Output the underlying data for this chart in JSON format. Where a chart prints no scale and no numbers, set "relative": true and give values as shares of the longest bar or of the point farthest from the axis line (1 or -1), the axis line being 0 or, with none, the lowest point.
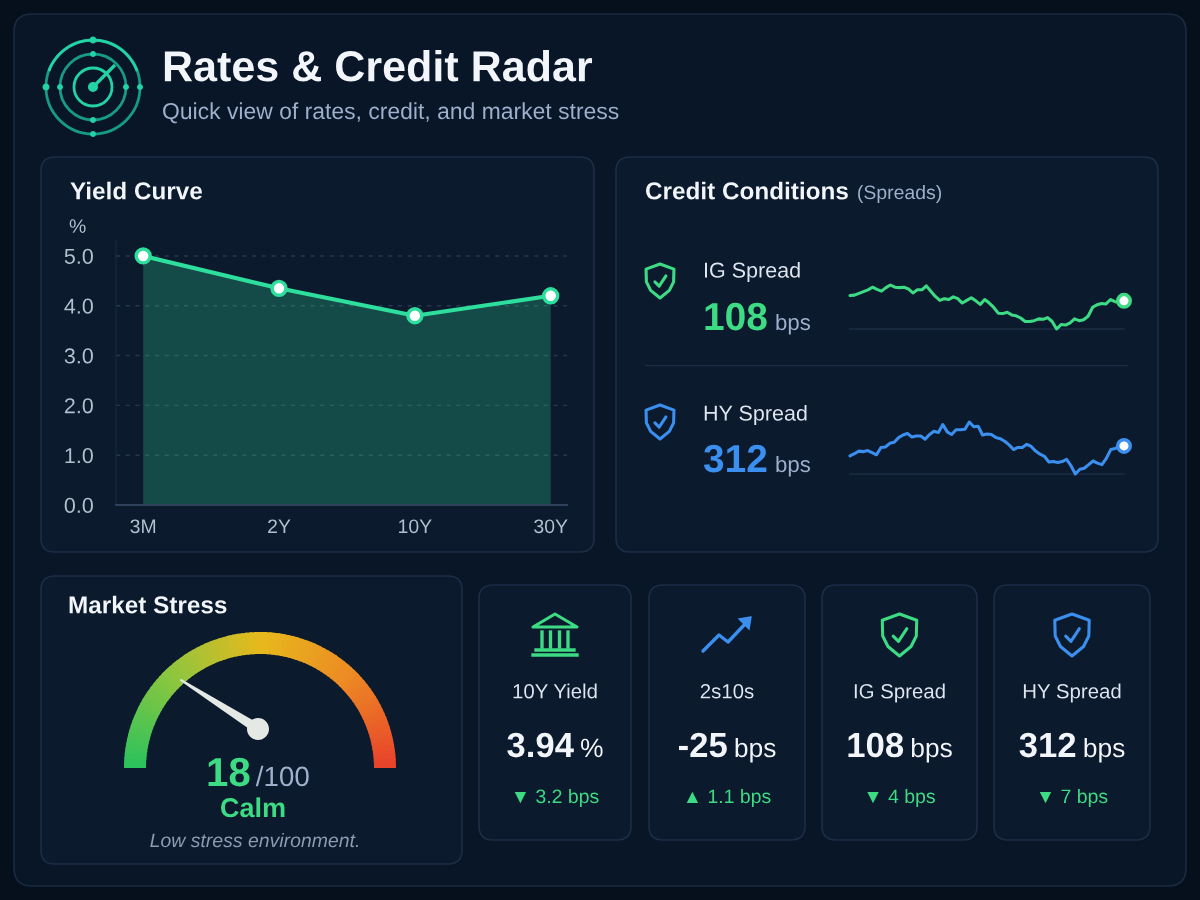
{
  "chart_data": [
    {
      "type": "other",
      "title": "Rates & Credit Radar",
      "subtitle": "Quick view of rates, credit, and market stress"
    },
    {
      "type": "area",
      "title": "Yield Curve",
      "ylabel": "%",
      "categories": [
        "3M",
        "2Y",
        "10Y",
        "30Y"
      ],
      "series": [
        {
          "color": "#2ede9c",
          "values": [
            5.0,
            4.35,
            3.8,
            4.2
          ]
        }
      ],
      "ylim": [
        0,
        5.3
      ],
      "yticks": [
        {
          "value": 0,
          "label": "0.0"
        },
        {
          "value": 1,
          "label": "1.0"
        },
        {
          "value": 2,
          "label": "2.0"
        },
        {
          "value": 3,
          "label": "3.0"
        },
        {
          "value": 4,
          "label": "4.0"
        },
        {
          "value": 5,
          "label": "5.0"
        }
      ],
      "grid": "y",
      "marker": "circle"
    },
    {
      "type": "line",
      "title": "Credit Conditions",
      "subtitle": "(Spreads)",
      "relative": true,
      "categories": [
        null,
        null,
        null,
        null,
        null,
        null,
        null,
        null,
        null,
        null,
        null,
        null,
        null,
        null,
        null,
        null,
        null,
        null,
        null,
        null,
        null,
        null,
        null,
        null,
        null,
        null,
        null,
        null,
        null,
        null,
        null,
        null,
        null,
        null,
        null,
        null,
        null,
        null,
        null,
        null,
        null,
        null,
        null,
        null,
        null,
        null,
        null,
        null,
        null,
        null,
        null,
        null,
        null,
        null,
        null,
        null,
        null,
        null,
        null,
        null,
        null,
        null
      ],
      "series": [
        {
          "name": "IG Spread",
          "color": "#3ddc84",
          "values": [
            0.76,
            0.77,
            0.81,
            0.85,
            0.89,
            0.95,
            0.9,
            0.86,
            0.94,
            1.0,
            0.95,
            0.94,
            0.95,
            0.91,
            0.82,
            0.89,
            0.89,
            0.98,
            0.86,
            0.74,
            0.65,
            0.69,
            0.67,
            0.73,
            0.69,
            0.59,
            0.65,
            0.71,
            0.64,
            0.56,
            0.67,
            0.59,
            0.49,
            0.36,
            0.35,
            0.38,
            0.32,
            0.3,
            0.25,
            0.17,
            0.17,
            0.19,
            0.23,
            0.22,
            0.26,
            0.17,
            0.0,
            0.1,
            0.09,
            0.14,
            0.23,
            0.19,
            0.21,
            0.29,
            0.49,
            0.55,
            0.58,
            0.57,
            0.67,
            0.62,
            0.61,
            0.64
          ]
        }
      ],
      "annotations": [
        "108",
        "bps"
      ]
    },
    {
      "type": "line",
      "relative": true,
      "categories": [
        null,
        null,
        null,
        null,
        null,
        null,
        null,
        null,
        null,
        null,
        null,
        null,
        null,
        null,
        null,
        null,
        null,
        null,
        null,
        null,
        null,
        null,
        null,
        null,
        null,
        null,
        null,
        null,
        null,
        null,
        null,
        null,
        null,
        null,
        null,
        null,
        null,
        null,
        null,
        null,
        null,
        null,
        null,
        null,
        null,
        null,
        null,
        null,
        null,
        null,
        null,
        null,
        null,
        null,
        null,
        null,
        null,
        null,
        null,
        null,
        null,
        null,
        null
      ],
      "series": [
        {
          "name": "HY Spread",
          "color": "#3b8fef",
          "values": [
            0.35,
            0.39,
            0.44,
            0.43,
            0.45,
            0.41,
            0.37,
            0.51,
            0.52,
            0.59,
            0.61,
            0.7,
            0.75,
            0.78,
            0.71,
            0.73,
            0.73,
            0.67,
            0.76,
            0.82,
            0.8,
            0.95,
            0.81,
            0.76,
            0.85,
            0.85,
            0.86,
            1.0,
            0.91,
            0.92,
            0.75,
            0.77,
            0.76,
            0.7,
            0.68,
            0.63,
            0.56,
            0.47,
            0.51,
            0.51,
            0.57,
            0.53,
            0.44,
            0.38,
            0.34,
            0.23,
            0.24,
            0.22,
            0.24,
            0.28,
            0.16,
            0.0,
            0.09,
            0.11,
            0.18,
            0.25,
            0.21,
            0.18,
            0.3,
            0.47,
            0.49,
            0.54,
            0.54
          ]
        }
      ],
      "annotations": [
        "312",
        "bps"
      ]
    },
    {
      "type": "other",
      "title": "Market Stress",
      "values": [
        18
      ],
      "value_labels": [
        "18"
      ],
      "annotations": [
        "/100",
        "Calm",
        "Low stress environment."
      ]
    },
    {
      "type": "other",
      "title": "10Y Yield",
      "annotations": [
        "3.94",
        "%",
        "▼ 3.2 bps"
      ]
    },
    {
      "type": "other",
      "title": "2s10s",
      "annotations": [
        "-25",
        "bps",
        "▲ 1.1 bps"
      ]
    },
    {
      "type": "other",
      "title": "IG Spread",
      "annotations": [
        "108",
        "bps",
        "▼ 4 bps"
      ]
    },
    {
      "type": "other",
      "title": "HY Spread",
      "annotations": [
        "312",
        "bps",
        "▼ 7 bps"
      ]
    }
  ]
}
